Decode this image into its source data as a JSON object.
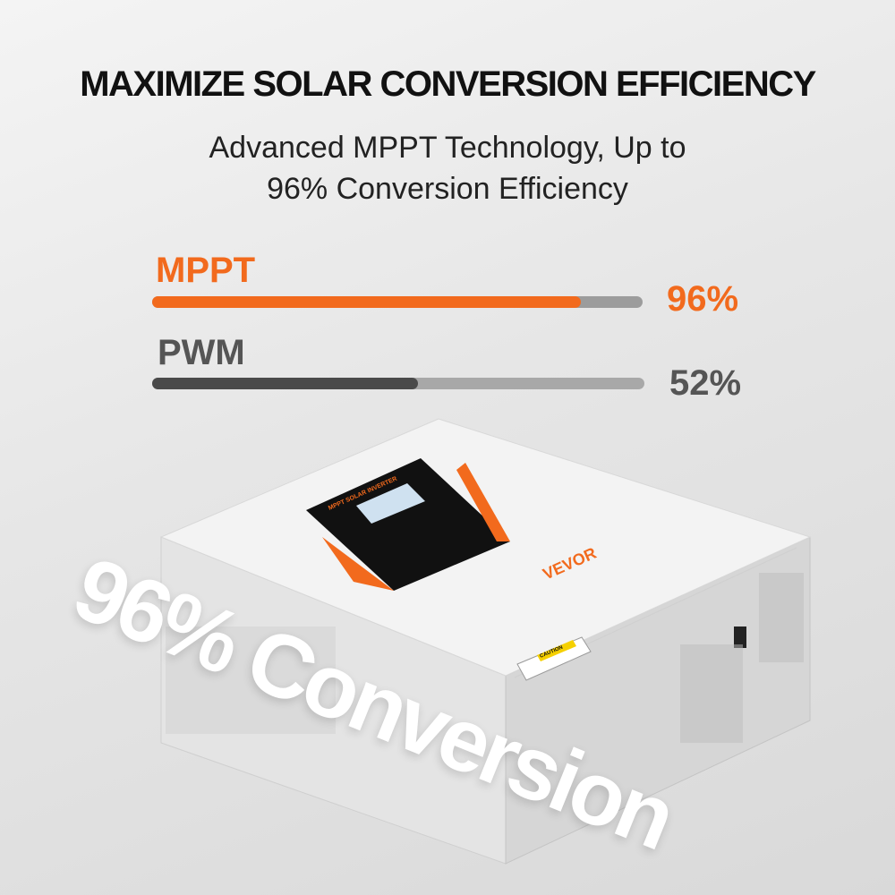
{
  "header": {
    "title": "MAXIMIZE SOLAR CONVERSION EFFICIENCY",
    "subtitle_line1": "Advanced MPPT Technology, Up to",
    "subtitle_line2": "96% Conversion Efficiency"
  },
  "comparison": [
    {
      "label": "MPPT",
      "value": 96,
      "value_text": "96%",
      "color": "#f26a1d"
    },
    {
      "label": "PWM",
      "value": 52,
      "value_text": "52%",
      "color": "#555555"
    }
  ],
  "product": {
    "panel_text": "MPPT SOLAR INVERTER",
    "brand": "VEVOR",
    "caution": "CAUTION",
    "accent": "#f26a1d"
  },
  "overlay_text": "96% Conversion"
}
